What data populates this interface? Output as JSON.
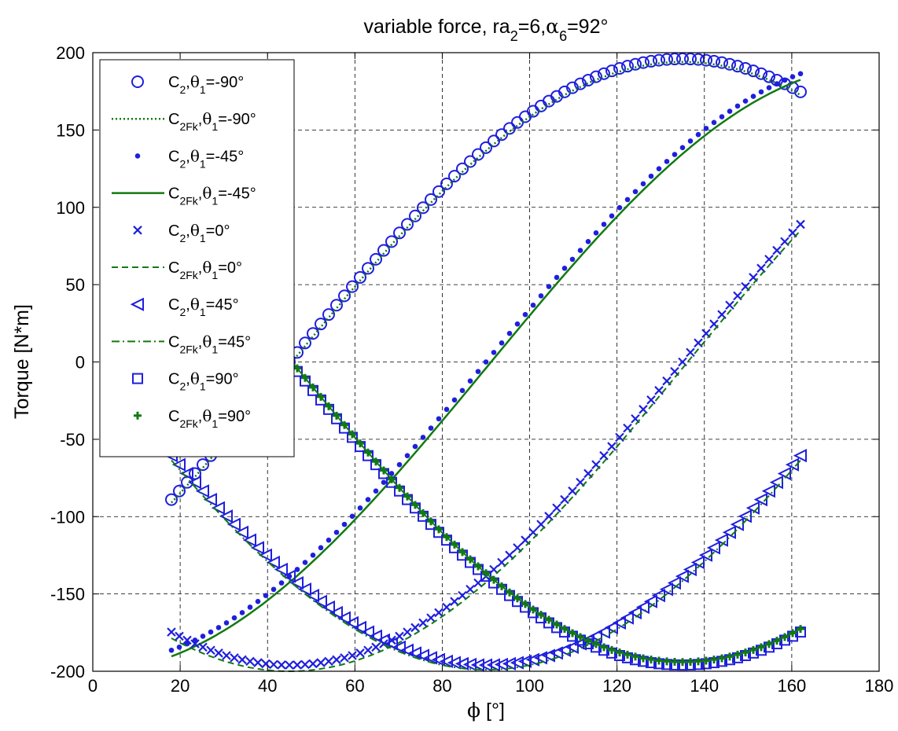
{
  "chart_data": {
    "type": "line",
    "title": {
      "base": "variable force, ra",
      "sub1": "2",
      "mid": "=6,",
      "alpha": "α",
      "sub2": "6",
      "tail": "=92°"
    },
    "xlabel": {
      "sym": "ϕ",
      "unit": " [°]"
    },
    "ylabel": "Torque [N*m]",
    "xlim": [
      0,
      180
    ],
    "ylim": [
      -200,
      200
    ],
    "xticks": [
      "0",
      "20",
      "40",
      "60",
      "80",
      "100",
      "120",
      "140",
      "160",
      "180"
    ],
    "yticks": [
      "-200",
      "-150",
      "-100",
      "-50",
      "0",
      "50",
      "100",
      "150",
      "200"
    ],
    "grid": true,
    "legend_position": "top-left",
    "colors": {
      "blue": "#1f1fdd",
      "green": "#117a11"
    },
    "x_range": [
      18,
      162
    ],
    "amplitude": 196,
    "legend": [
      {
        "name": "C",
        "sub": "2",
        "theta": "θ",
        "tsub": "1",
        "val": "=-90°",
        "marker": "circle",
        "color": "blue"
      },
      {
        "name": "C",
        "sub": "2Fk",
        "theta": "θ",
        "tsub": "1",
        "val": "=-90°",
        "marker": "line-dotted",
        "color": "green"
      },
      {
        "name": "C",
        "sub": "2",
        "theta": "θ",
        "tsub": "1",
        "val": "=-45°",
        "marker": "dot",
        "color": "blue"
      },
      {
        "name": "C",
        "sub": "2Fk",
        "theta": "θ",
        "tsub": "1",
        "val": "=-45°",
        "marker": "line-solid",
        "color": "green"
      },
      {
        "name": "C",
        "sub": "2",
        "theta": "θ",
        "tsub": "1",
        "val": "=0°",
        "marker": "x",
        "color": "blue"
      },
      {
        "name": "C",
        "sub": "2Fk",
        "theta": "θ",
        "tsub": "1",
        "val": "=0°",
        "marker": "line-dashed",
        "color": "green"
      },
      {
        "name": "C",
        "sub": "2",
        "theta": "θ",
        "tsub": "1",
        "val": "=45°",
        "marker": "triangle-left",
        "color": "blue"
      },
      {
        "name": "C",
        "sub": "2Fk",
        "theta": "θ",
        "tsub": "1",
        "val": "=45°",
        "marker": "line-dashdot",
        "color": "green"
      },
      {
        "name": "C",
        "sub": "2",
        "theta": "θ",
        "tsub": "1",
        "val": "=90°",
        "marker": "square",
        "color": "blue"
      },
      {
        "name": "C",
        "sub": "2Fk",
        "theta": "θ",
        "tsub": "1",
        "val": "=90°",
        "marker": "plus",
        "color": "green"
      }
    ],
    "series": [
      {
        "kind": "model",
        "phase": 135,
        "offset": 0
      },
      {
        "kind": "reference",
        "phase": 135,
        "offset": -2
      },
      {
        "kind": "model",
        "phase": 90,
        "offset": 0
      },
      {
        "kind": "reference",
        "phase": 90,
        "offset": -4
      },
      {
        "kind": "model",
        "phase": 45,
        "offset": 0
      },
      {
        "kind": "reference",
        "phase": 45,
        "offset": -4
      },
      {
        "kind": "model",
        "phase": 0,
        "offset": 0
      },
      {
        "kind": "reference",
        "phase": 0,
        "offset": -3
      },
      {
        "kind": "model",
        "phase": -45,
        "offset": 0
      },
      {
        "kind": "reference",
        "phase": -45,
        "offset": 2
      }
    ]
  }
}
